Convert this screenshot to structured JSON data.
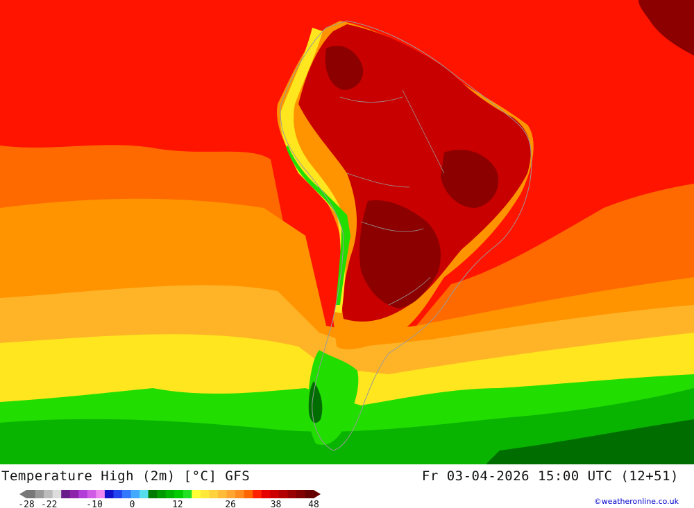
{
  "title": "Temperature High (2m) [°C] GFS",
  "timestamp": "Fr 03-04-2026 15:00 UTC (12+51)",
  "credit": "©weatheronline.co.uk",
  "legend": {
    "colors": [
      "#777777",
      "#999999",
      "#bbbbbb",
      "#dddddd",
      "#6a1b8a",
      "#8e24aa",
      "#b23cd8",
      "#d05ce6",
      "#ee88f0",
      "#1111cc",
      "#2244ee",
      "#3377ff",
      "#44aaff",
      "#55ddee",
      "#007a00",
      "#009900",
      "#00b400",
      "#00cc00",
      "#22e022",
      "#ffff33",
      "#ffe838",
      "#ffd23c",
      "#ffbc38",
      "#ffa532",
      "#ff8c1e",
      "#ff6600",
      "#ff2200",
      "#e60000",
      "#cc0000",
      "#b30000",
      "#990000",
      "#800000",
      "#660000"
    ],
    "ticks": [
      {
        "label": "-28",
        "value": -28
      },
      {
        "label": "-22",
        "value": -22
      },
      {
        "label": "-10",
        "value": -10
      },
      {
        "label": "0",
        "value": 0
      },
      {
        "label": "12",
        "value": 12
      },
      {
        "label": "26",
        "value": 26
      },
      {
        "label": "38",
        "value": 38
      },
      {
        "label": "48",
        "value": 48
      }
    ],
    "min": -28,
    "max": 48
  },
  "palette": {
    "ocean_hot": "#ff1400",
    "ocean_warm": "#ff6a00",
    "ocean_mid": "#ff9400",
    "ocean_cool": "#ffb428",
    "band_yellow": "#ffe61e",
    "band_green": "#22dd00",
    "band_green_dark": "#08b400",
    "band_green_deep": "#006d00",
    "land_hot": "#c80000",
    "land_very_hot": "#8c0000",
    "border": "#9a9a9a"
  }
}
